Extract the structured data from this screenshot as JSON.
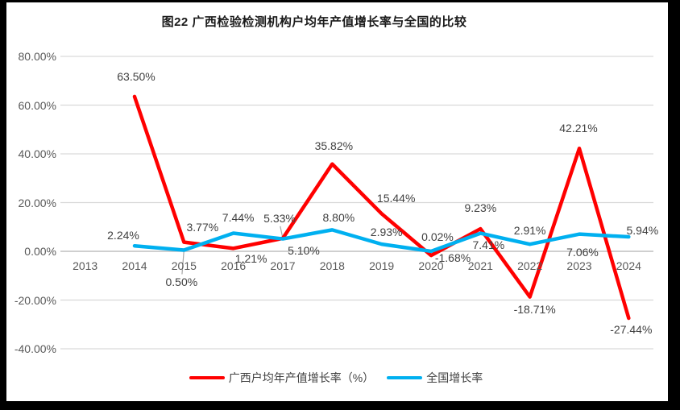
{
  "title": "图22 广西检验检测机构户均年产值增长率与全国的比较",
  "colors": {
    "guangxi_line": "#FF0000",
    "national_line": "#00B0F0",
    "gridline": "#D9D9D9",
    "zero_axis_line": "#BFBFBF",
    "leader_line": "#A6A6A6",
    "axis_text": "#595959",
    "data_label_text": "#404040"
  },
  "chart_data": {
    "type": "line",
    "categories": [
      "2013",
      "2014",
      "2015",
      "2016",
      "2017",
      "2018",
      "2019",
      "2020",
      "2021",
      "2022",
      "2023",
      "2024"
    ],
    "y_ticks": [
      "80.00%",
      "60.00%",
      "40.00%",
      "20.00%",
      "0.00%",
      "-20.00%",
      "-40.00%"
    ],
    "y_tick_values": [
      80,
      60,
      40,
      20,
      0,
      -20,
      -40
    ],
    "ylim": [
      -40,
      80
    ],
    "grid": true,
    "legend_position": "bottom",
    "series": [
      {
        "name": "广西户均年产值增长率（%）",
        "color": "#FF0000",
        "start_index": 1,
        "values": [
          63.5,
          3.77,
          1.21,
          5.33,
          35.82,
          15.44,
          -1.68,
          9.23,
          -18.71,
          42.21,
          -27.44
        ],
        "labels": [
          "63.50%",
          "3.77%",
          "1.21%",
          "5.33%",
          "35.82%",
          "15.44%",
          "-1.68%",
          "9.23%",
          "-18.71%",
          "42.21%",
          "-27.44%"
        ],
        "label_offsets": [
          [
            2,
            -25
          ],
          [
            23,
            -19
          ],
          [
            22,
            13
          ],
          [
            -4,
            -25
          ],
          [
            2,
            -23
          ],
          [
            18,
            -19
          ],
          [
            27,
            3
          ],
          [
            0,
            -26
          ],
          [
            6,
            15
          ],
          [
            -1,
            -25
          ],
          [
            3,
            14
          ]
        ]
      },
      {
        "name": "全国增长率",
        "color": "#00B0F0",
        "start_index": 1,
        "values": [
          2.24,
          0.5,
          7.44,
          5.1,
          8.8,
          2.93,
          0.02,
          7.41,
          2.91,
          7.06,
          5.94
        ],
        "labels": [
          "2.24%",
          "0.50%",
          "7.44%",
          "5.10%",
          "8.80%",
          "2.93%",
          "0.02%",
          "7.41%",
          "2.91%",
          "7.06%",
          "5.94%"
        ],
        "label_offsets": [
          [
            -14,
            -13
          ],
          [
            -3,
            40
          ],
          [
            6,
            -19
          ],
          [
            26,
            14
          ],
          [
            8,
            -15
          ],
          [
            6,
            -15
          ],
          [
            8,
            -18
          ],
          [
            10,
            14
          ],
          [
            0,
            -17
          ],
          [
            4,
            22
          ],
          [
            17,
            -8
          ]
        ]
      }
    ],
    "leader_lines": [
      {
        "series": 0,
        "index": 3
      },
      {
        "series": 1,
        "index": 1
      }
    ]
  }
}
